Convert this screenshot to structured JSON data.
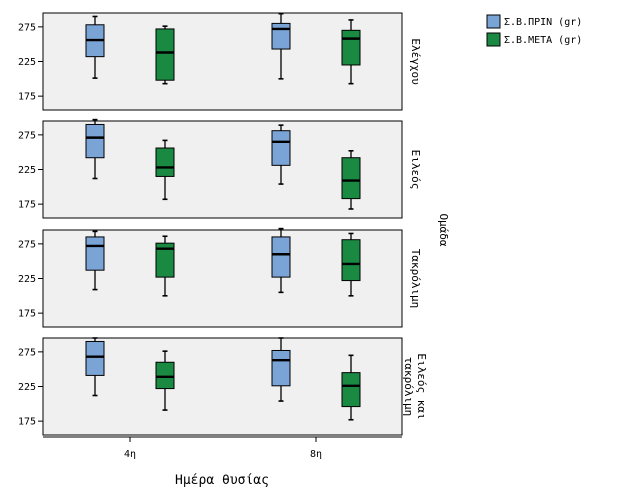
{
  "chart_data": {
    "type": "boxplot",
    "x_title": "Ημέρα θυσίας",
    "facet_title": "Ομάδα",
    "categories": [
      "4η",
      "8η"
    ],
    "y_ticks": [
      175,
      225,
      275
    ],
    "ylim": [
      155,
      295
    ],
    "grid": false,
    "legend_position": "top-right",
    "series": [
      {
        "name": "Σ.Β.ΠΡΙΝ (gr)",
        "color": "#7aa3d6"
      },
      {
        "name": "Σ.Β.ΜΕΤΑ (gr)",
        "color": "#1a8a43"
      }
    ],
    "panels": [
      {
        "label": "Ελέγχου",
        "boxes": [
          {
            "series": 0,
            "category": 0,
            "min": 201,
            "q1": 232,
            "median": 256,
            "q3": 278,
            "max": 290
          },
          {
            "series": 1,
            "category": 0,
            "min": 193,
            "q1": 198,
            "median": 238,
            "q3": 272,
            "max": 276
          },
          {
            "series": 0,
            "category": 1,
            "min": 200,
            "q1": 243,
            "median": 272,
            "q3": 280,
            "max": 294
          },
          {
            "series": 1,
            "category": 1,
            "min": 193,
            "q1": 220,
            "median": 258,
            "q3": 270,
            "max": 285
          }
        ]
      },
      {
        "label": "Ειλεός",
        "boxes": [
          {
            "series": 0,
            "category": 0,
            "min": 212,
            "q1": 242,
            "median": 271,
            "q3": 290,
            "max": 297
          },
          {
            "series": 1,
            "category": 0,
            "min": 182,
            "q1": 215,
            "median": 228,
            "q3": 256,
            "max": 267
          },
          {
            "series": 0,
            "category": 1,
            "min": 204,
            "q1": 231,
            "median": 265,
            "q3": 281,
            "max": 289
          },
          {
            "series": 1,
            "category": 1,
            "min": 168,
            "q1": 183,
            "median": 209,
            "q3": 242,
            "max": 252
          }
        ]
      },
      {
        "label": "Τακρόλιμη",
        "boxes": [
          {
            "series": 0,
            "category": 0,
            "min": 209,
            "q1": 237,
            "median": 272,
            "q3": 285,
            "max": 293
          },
          {
            "series": 1,
            "category": 0,
            "min": 200,
            "q1": 227,
            "median": 268,
            "q3": 276,
            "max": 286
          },
          {
            "series": 0,
            "category": 1,
            "min": 205,
            "q1": 227,
            "median": 260,
            "q3": 285,
            "max": 297
          },
          {
            "series": 1,
            "category": 1,
            "min": 200,
            "q1": 222,
            "median": 246,
            "q3": 281,
            "max": 290
          }
        ]
      },
      {
        "label": "Ειλεός και τακρόλιμη",
        "boxes": [
          {
            "series": 0,
            "category": 0,
            "min": 212,
            "q1": 241,
            "median": 268,
            "q3": 290,
            "max": 295
          },
          {
            "series": 1,
            "category": 0,
            "min": 191,
            "q1": 222,
            "median": 239,
            "q3": 260,
            "max": 276
          },
          {
            "series": 0,
            "category": 1,
            "min": 204,
            "q1": 226,
            "median": 263,
            "q3": 277,
            "max": 295
          },
          {
            "series": 1,
            "category": 1,
            "min": 177,
            "q1": 196,
            "median": 226,
            "q3": 245,
            "max": 270
          }
        ]
      }
    ]
  }
}
